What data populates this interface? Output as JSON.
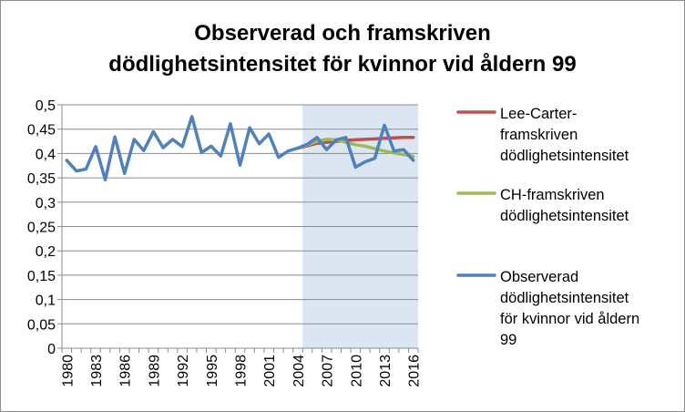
{
  "chart_data": {
    "type": "line",
    "title_lines": [
      "Observerad och framskriven",
      "dödlighetsintensitet för kvinnor vid åldern 99"
    ],
    "xlabel": "",
    "ylabel": "",
    "x_tick_labels": [
      "1980",
      "1983",
      "1986",
      "1989",
      "1992",
      "1995",
      "1998",
      "2001",
      "2004",
      "2007",
      "2010",
      "2013",
      "2016"
    ],
    "x_range": [
      1980,
      2016
    ],
    "ylim": [
      0,
      0.5
    ],
    "y_ticks": [
      0,
      0.05,
      0.1,
      0.15,
      0.2,
      0.25,
      0.3,
      0.35,
      0.4,
      0.45,
      0.5
    ],
    "y_tick_labels": [
      "0",
      "0,05",
      "0,1",
      "0,15",
      "0,2",
      "0,25",
      "0,3",
      "0,35",
      "0,4",
      "0,45",
      "0,5"
    ],
    "grid": true,
    "shaded_region": {
      "x_from": 2005,
      "x_to": 2016,
      "color": "#dce6f2"
    },
    "legend_position": "right",
    "series": [
      {
        "name": "Lee-Carter-framskriven dödlighetsintensitet",
        "legend_lines": [
          "Lee-Carter-",
          "framskriven",
          "dödlighetsintensitet"
        ],
        "color": "#c0504d",
        "x": [
          2004,
          2005,
          2006,
          2007,
          2008,
          2009,
          2010,
          2011,
          2012,
          2013,
          2014,
          2015,
          2016
        ],
        "values": [
          0.411,
          0.416,
          0.421,
          0.423,
          0.425,
          0.427,
          0.428,
          0.429,
          0.43,
          0.431,
          0.432,
          0.433,
          0.433
        ]
      },
      {
        "name": "CH-framskriven dödlighetsintensitet",
        "legend_lines": [
          "CH-framskriven",
          "dödlighetsintensitet"
        ],
        "color": "#9bbb59",
        "x": [
          2004,
          2005,
          2006,
          2007,
          2008,
          2009,
          2010,
          2011,
          2012,
          2013,
          2014,
          2015,
          2016
        ],
        "values": [
          0.411,
          0.418,
          0.425,
          0.429,
          0.428,
          0.423,
          0.418,
          0.415,
          0.41,
          0.405,
          0.401,
          0.398,
          0.394
        ]
      },
      {
        "name": "Observerad dödlighetsintensitet för kvinnor vid åldern 99",
        "legend_lines": [
          "Observerad",
          "dödlighetsintensitet",
          "för kvinnor vid åldern",
          "99"
        ],
        "color": "#4f81bd",
        "x": [
          1980,
          1981,
          1982,
          1983,
          1984,
          1985,
          1986,
          1987,
          1988,
          1989,
          1990,
          1991,
          1992,
          1993,
          1994,
          1995,
          1996,
          1997,
          1998,
          1999,
          2000,
          2001,
          2002,
          2003,
          2004,
          2005,
          2006,
          2007,
          2008,
          2009,
          2010,
          2011,
          2012,
          2013,
          2014,
          2015,
          2016
        ],
        "values": [
          0.386,
          0.364,
          0.368,
          0.414,
          0.346,
          0.434,
          0.359,
          0.429,
          0.406,
          0.445,
          0.412,
          0.429,
          0.414,
          0.476,
          0.402,
          0.415,
          0.395,
          0.461,
          0.376,
          0.453,
          0.42,
          0.44,
          0.392,
          0.405,
          0.411,
          0.419,
          0.433,
          0.408,
          0.428,
          0.433,
          0.372,
          0.383,
          0.39,
          0.458,
          0.405,
          0.408,
          0.386
        ]
      }
    ]
  }
}
